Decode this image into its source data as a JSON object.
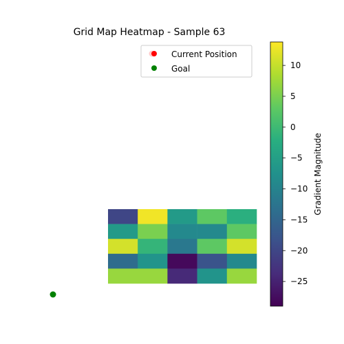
{
  "chart_data": {
    "type": "heatmap",
    "title": "Grid Map Heatmap - Sample 63",
    "grid": {
      "cols": 5,
      "rows": 5,
      "values": [
        [
          -20,
          13,
          -6,
          3,
          -2
        ],
        [
          -6,
          5,
          -9,
          -9,
          3
        ],
        [
          11,
          -1,
          -12,
          3,
          11
        ],
        [
          -14,
          -7,
          -28,
          -18,
          -9
        ],
        [
          7,
          7,
          -24,
          -7,
          7
        ]
      ]
    },
    "colorbar": {
      "label": "Gradient Magnitude",
      "min": -29,
      "max": 13.8,
      "ticks": [
        10,
        5,
        0,
        -5,
        -10,
        -15,
        -20,
        -25
      ],
      "tick_labels": [
        "10",
        "5",
        "0",
        "−5",
        "−10",
        "−15",
        "−20",
        "−25"
      ],
      "colormap": "viridis"
    },
    "markers": [
      {
        "name": "Current Position",
        "color": "#ff0000"
      },
      {
        "name": "Goal",
        "color": "#008000"
      }
    ],
    "legend": {
      "position": "top-right",
      "entries": [
        "Current Position",
        "Goal"
      ]
    }
  }
}
